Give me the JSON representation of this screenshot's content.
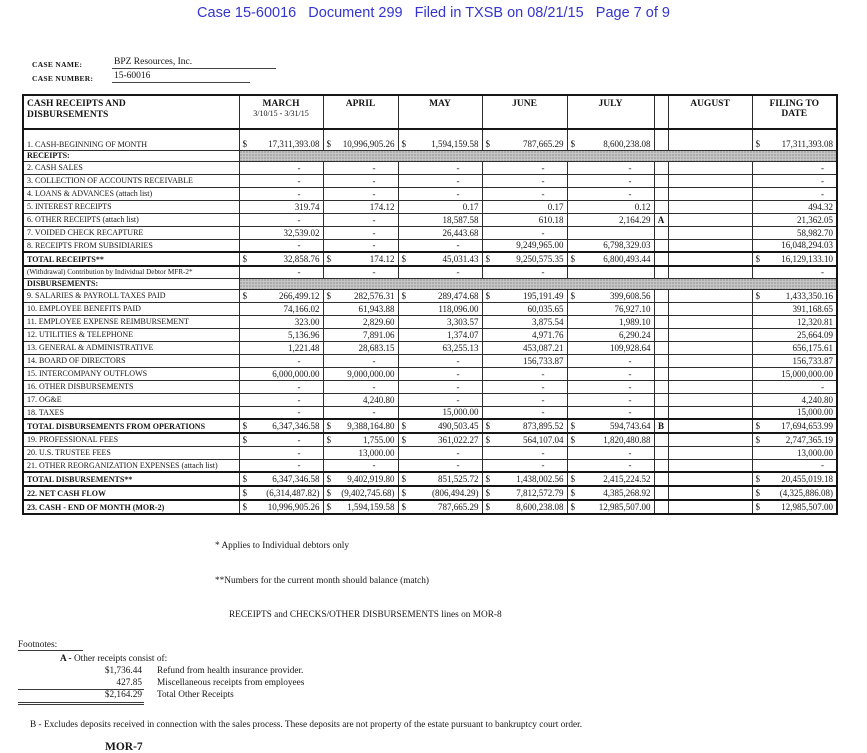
{
  "doc_header": "Case 15-60016   Document 299   Filed in TXSB on 08/21/15   Page 7 of 9",
  "case_info": {
    "name_label": "CASE NAME:",
    "name_value": "BPZ Resources, Inc.",
    "number_label": "CASE NUMBER:",
    "number_value": "15-60016"
  },
  "table": {
    "title": "CASH RECEIPTS AND DISBURSEMENTS",
    "columns": [
      "MARCH",
      "APRIL",
      "MAY",
      "JUNE",
      "JULY",
      "AUGUST",
      "FILING TO DATE"
    ],
    "march_subtitle": "3/10/15 - 3/31/15",
    "rows": [
      {
        "label": "1. CASH-BEGINNING OF MONTH",
        "type": "first",
        "cells": [
          "$ 17,311,393.08",
          "$ 10,996,905.26",
          "$ 1,594,159.58",
          "$ 787,665.29",
          "$ 8,600,238.08",
          "",
          "",
          "$ 17,311,393.08"
        ]
      },
      {
        "label": "RECEIPTS:",
        "type": "section",
        "cells": []
      },
      {
        "label": "2. CASH SALES",
        "type": "data",
        "cells": [
          "-",
          "-",
          "-",
          "-",
          "-",
          "",
          "",
          "-"
        ]
      },
      {
        "label": "3. COLLECTION OF ACCOUNTS RECEIVABLE",
        "type": "data",
        "cells": [
          "-",
          "-",
          "-",
          "-",
          "-",
          "",
          "",
          "-"
        ]
      },
      {
        "label": "4. LOANS & ADVANCES (attach list)",
        "type": "data",
        "cells": [
          "-",
          "-",
          "-",
          "-",
          "-",
          "",
          "",
          "-"
        ]
      },
      {
        "label": "5. INTEREST RECEIPTS",
        "type": "data",
        "cells": [
          "319.74",
          "174.12",
          "0.17",
          "0.17",
          "0.12",
          "",
          "",
          "494.32"
        ]
      },
      {
        "label": "6. OTHER RECEIPTS (attach list)",
        "type": "data",
        "cells": [
          "-",
          "-",
          "18,587.58",
          "610.18",
          "2,164.29",
          "A",
          "",
          "21,362.05"
        ]
      },
      {
        "label": "7. VOIDED CHECK RECAPTURE",
        "type": "data",
        "cells": [
          "32,539.02",
          "-",
          "26,443.68",
          "-",
          "",
          "",
          "",
          "58,982.70"
        ]
      },
      {
        "label": "8. RECEIPTS FROM SUBSIDIARIES",
        "type": "data",
        "cells": [
          "-",
          "-",
          "-",
          "9,249,965.00",
          "6,798,329.03",
          "",
          "",
          "16,048,294.03"
        ]
      },
      {
        "label": "TOTAL RECEIPTS**",
        "type": "total",
        "cells": [
          "$ 32,858.76",
          "$ 174.12",
          "$ 45,031.43",
          "$ 9,250,575.35",
          "$ 6,800,493.44",
          "",
          "",
          "$ 16,129,133.10"
        ]
      },
      {
        "label": "(Withdrawal) Contribution by Individual Debtor MFR-2*",
        "type": "small",
        "cells": [
          "-",
          "-",
          "-",
          "-",
          "",
          "",
          "",
          "-"
        ]
      },
      {
        "label": "DISBURSEMENTS:",
        "type": "section",
        "cells": []
      },
      {
        "label": "9. SALARIES & PAYROLL TAXES PAID",
        "type": "data",
        "cells": [
          "$ 266,499.12",
          "$ 282,576.31",
          "$ 289,474.68",
          "$ 195,191.49",
          "$ 399,608.56",
          "",
          "",
          "$ 1,433,350.16"
        ]
      },
      {
        "label": "10. EMPLOYEE BENEFITS PAID",
        "type": "data",
        "cells": [
          "74,166.02",
          "61,943.88",
          "118,096.00",
          "60,035.65",
          "76,927.10",
          "",
          "",
          "391,168.65"
        ]
      },
      {
        "label": "11. EMPLOYEE EXPENSE REIMBURSEMENT",
        "type": "data",
        "cells": [
          "323.00",
          "2,829.60",
          "3,303.57",
          "3,875.54",
          "1,989.10",
          "",
          "",
          "12,320.81"
        ]
      },
      {
        "label": "12. UTILITIES & TELEPHONE",
        "type": "data",
        "cells": [
          "5,136.96",
          "7,891.06",
          "1,374.07",
          "4,971.76",
          "6,290.24",
          "",
          "",
          "25,664.09"
        ]
      },
      {
        "label": "13. GENERAL & ADMINISTRATIVE",
        "type": "data",
        "cells": [
          "1,221.48",
          "28,683.15",
          "63,255.13",
          "453,087.21",
          "109,928.64",
          "",
          "",
          "656,175.61"
        ]
      },
      {
        "label": "14. BOARD OF DIRECTORS",
        "type": "data",
        "cells": [
          "-",
          "-",
          "-",
          "156,733.87",
          "-",
          "",
          "",
          "156,733.87"
        ]
      },
      {
        "label": "15. INTERCOMPANY OUTFLOWS",
        "type": "data",
        "cells": [
          "6,000,000.00",
          "9,000,000.00",
          "-",
          "-",
          "-",
          "",
          "",
          "15,000,000.00"
        ]
      },
      {
        "label": "16. OTHER DISBURSEMENTS",
        "type": "data",
        "cells": [
          "-",
          "-",
          "-",
          "-",
          "-",
          "",
          "",
          "-"
        ]
      },
      {
        "label": "17. OG&E",
        "type": "data",
        "cells": [
          "-",
          "4,240.80",
          "-",
          "-",
          "-",
          "",
          "",
          "4,240.80"
        ]
      },
      {
        "label": "18. TAXES",
        "type": "data",
        "cells": [
          "-",
          "-",
          "15,000.00",
          "-",
          "-",
          "",
          "",
          "15,000.00"
        ]
      },
      {
        "label": "TOTAL DISBURSEMENTS FROM OPERATIONS",
        "type": "total",
        "cells": [
          "$ 6,347,346.58",
          "$ 9,388,164.80",
          "$ 490,503.45",
          "$ 873,895.52",
          "$ 594,743.64",
          "B",
          "",
          "$ 17,694,653.99"
        ]
      },
      {
        "label": "19. PROFESSIONAL FEES",
        "type": "data",
        "cells": [
          "$ -",
          "$ 1,755.00",
          "$ 361,022.27",
          "$ 564,107.04",
          "$ 1,820,480.88",
          "",
          "",
          "$ 2,747,365.19"
        ]
      },
      {
        "label": "20. U.S. TRUSTEE FEES",
        "type": "data",
        "cells": [
          "-",
          "13,000.00",
          "-",
          "-",
          "-",
          "",
          "",
          "13,000.00"
        ]
      },
      {
        "label": "21. OTHER REORGANIZATION EXPENSES (attach list)",
        "type": "data",
        "cells": [
          "-",
          "-",
          "-",
          "-",
          "-",
          "",
          "",
          "-"
        ]
      },
      {
        "label": "TOTAL DISBURSEMENTS**",
        "type": "total",
        "cells": [
          "$ 6,347,346.58",
          "$ 9,402,919.80",
          "$ 851,525.72",
          "$ 1,438,002.56",
          "$ 2,415,224.52",
          "",
          "",
          "$ 20,455,019.18"
        ]
      },
      {
        "label": "22. NET CASH FLOW",
        "type": "total",
        "cells": [
          "$ (6,314,487.82)",
          "$ (9,402,745.68)",
          "$ (806,494.29)",
          "$ 7,812,572.79",
          "$ 4,385,268.92",
          "",
          "",
          "$ (4,325,886.08)"
        ]
      },
      {
        "label": "23. CASH - END OF MONTH (MOR-2)",
        "type": "total",
        "cells": [
          "$ 10,996,905.26",
          "$ 1,594,159.58",
          "$ 787,665.29",
          "$ 8,600,238.08",
          "$ 12,985,507.00",
          "",
          "",
          "$ 12,985,507.00"
        ]
      }
    ]
  },
  "notes": [
    "* Applies to Individual debtors only",
    "**Numbers for the current month should balance (match)",
    "      RECEIPTS and CHECKS/OTHER DISBURSEMENTS lines on MOR-8"
  ],
  "footnotes": {
    "heading": "Footnotes:",
    "a_letter": "A - ",
    "a_title": "Other receipts consist of:",
    "a_items": [
      {
        "amount": "$1,736.44",
        "desc": "Refund from health insurance provider."
      },
      {
        "amount": "427.85",
        "desc": "Miscellaneous receipts from employees"
      },
      {
        "amount": "$2,164.29",
        "desc": "Total Other Receipts"
      }
    ],
    "b_note": "B - Excludes deposits received in connection with the sales process.  These deposits are not property of the estate pursuant to bankruptcy court order."
  },
  "mor_label": "MOR-7",
  "colors": {
    "header_blue": "#3434cf",
    "shade_gray": "#c6c6c6"
  }
}
